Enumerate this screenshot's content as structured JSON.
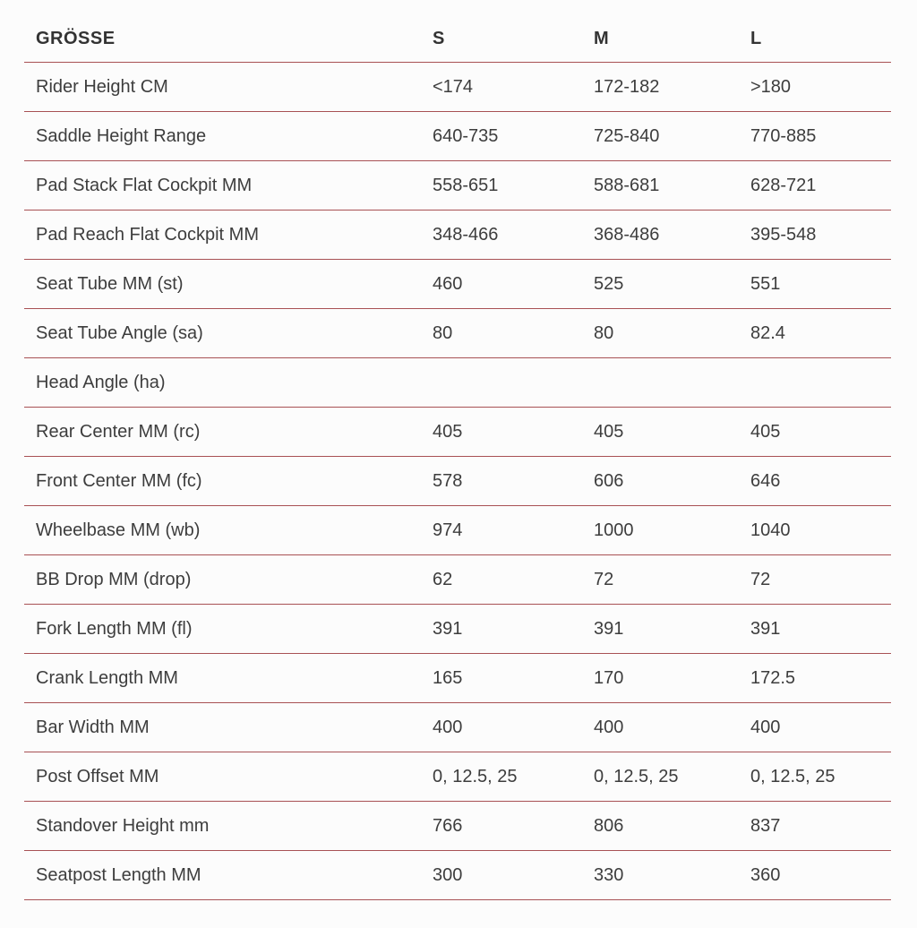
{
  "page": {
    "background": "#fcfcfc",
    "divider_color": "#a85154",
    "text_color": "#3a3a3a"
  },
  "chart_data": {
    "type": "table",
    "title": "GRÖSSE",
    "legend_position": "none",
    "grid": "horizontal-rules",
    "columns": [
      "GRÖSSE",
      "S",
      "M",
      "L"
    ],
    "rows": [
      [
        "Rider Height CM",
        "<174",
        "172-182",
        ">180"
      ],
      [
        "Saddle Height Range",
        "640-735",
        "725-840",
        "770-885"
      ],
      [
        "Pad Stack Flat Cockpit MM",
        "558-651",
        "588-681",
        "628-721"
      ],
      [
        "Pad Reach Flat Cockpit MM",
        "348-466",
        "368-486",
        "395-548"
      ],
      [
        "Seat Tube MM (st)",
        "460",
        "525",
        "551"
      ],
      [
        "Seat Tube Angle (sa)",
        "80",
        "80",
        "82.4"
      ],
      [
        "Head Angle (ha)",
        "",
        "",
        ""
      ],
      [
        "Rear Center MM (rc)",
        "405",
        "405",
        "405"
      ],
      [
        "Front Center MM (fc)",
        "578",
        "606",
        "646"
      ],
      [
        "Wheelbase MM (wb)",
        "974",
        "1000",
        "1040"
      ],
      [
        "BB Drop MM (drop)",
        "62",
        "72",
        "72"
      ],
      [
        "Fork Length MM (fl)",
        "391",
        "391",
        "391"
      ],
      [
        "Crank Length MM",
        "165",
        "170",
        "172.5"
      ],
      [
        "Bar Width MM",
        "400",
        "400",
        "400"
      ],
      [
        "Post Offset MM",
        "0, 12.5, 25",
        "0, 12.5, 25",
        "0, 12.5, 25"
      ],
      [
        "Standover Height mm",
        "766",
        "806",
        "837"
      ],
      [
        "Seatpost Length MM",
        "300",
        "330",
        "360"
      ]
    ]
  }
}
